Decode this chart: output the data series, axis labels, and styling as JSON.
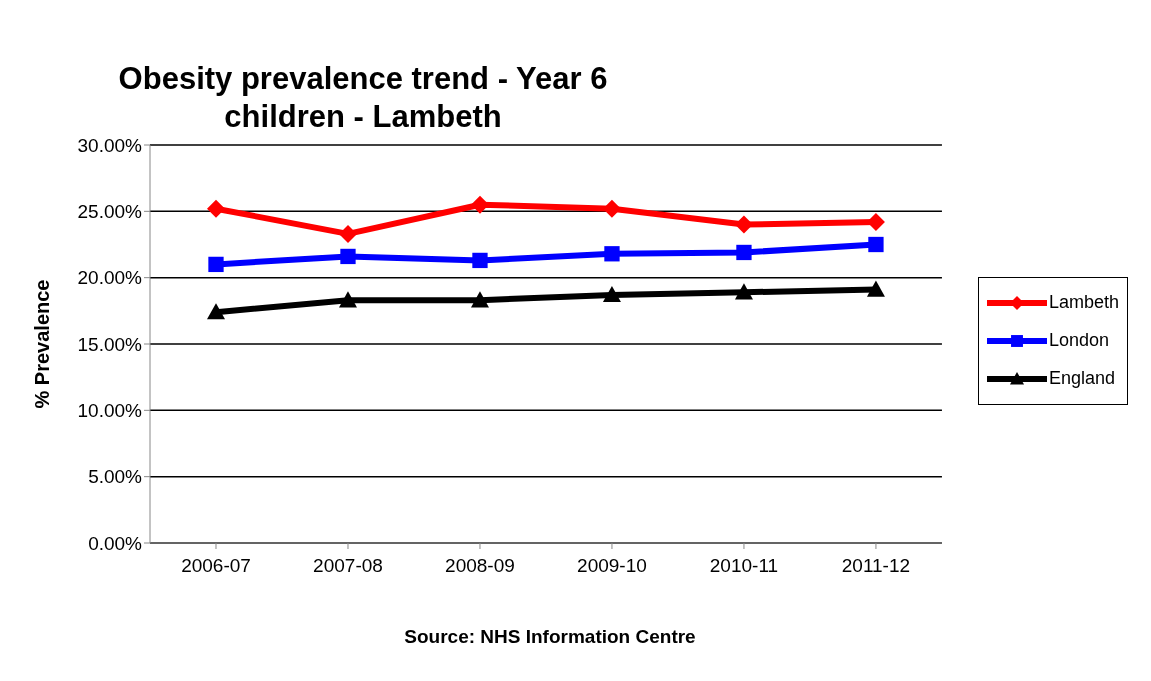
{
  "chart_data": {
    "type": "line",
    "title": "Obesity prevalence trend - Year 6 children - Lambeth",
    "ylabel": "% Prevalence",
    "annotations": [
      "Source: NHS Information Centre"
    ],
    "categories": [
      "2006-07",
      "2007-08",
      "2008-09",
      "2009-10",
      "2010-11",
      "2011-12"
    ],
    "series": [
      {
        "name": "Lambeth",
        "color": "#ff0000",
        "marker": "diamond",
        "values": [
          25.2,
          23.3,
          25.5,
          25.2,
          24.0,
          24.2
        ]
      },
      {
        "name": "London",
        "color": "#0000ff",
        "marker": "square",
        "values": [
          21.0,
          21.6,
          21.3,
          21.8,
          21.9,
          22.5
        ]
      },
      {
        "name": "England",
        "color": "#000000",
        "marker": "triangle",
        "values": [
          17.4,
          18.3,
          18.3,
          18.7,
          18.9,
          19.1
        ]
      }
    ],
    "ylim": [
      0,
      30
    ],
    "yticks": [
      {
        "value": 0,
        "label": "0.00%"
      },
      {
        "value": 5,
        "label": "5.00%"
      },
      {
        "value": 10,
        "label": "10.00%"
      },
      {
        "value": 15,
        "label": "15.00%"
      },
      {
        "value": 20,
        "label": "20.00%"
      },
      {
        "value": 25,
        "label": "25.00%"
      },
      {
        "value": 30,
        "label": "30.00%"
      }
    ],
    "grid": "y",
    "legend": "right"
  }
}
